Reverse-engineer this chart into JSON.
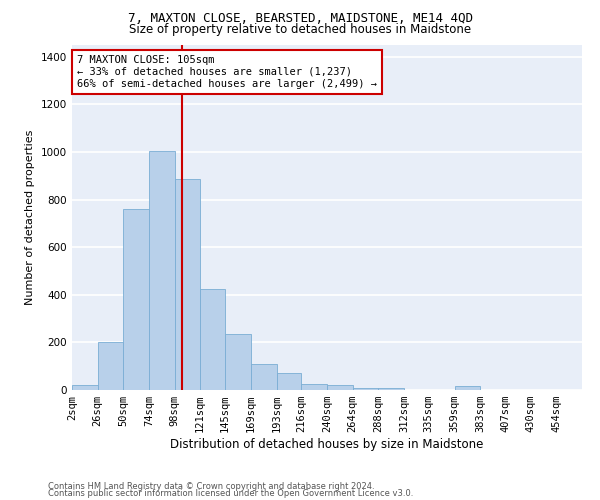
{
  "title": "7, MAXTON CLOSE, BEARSTED, MAIDSTONE, ME14 4QD",
  "subtitle": "Size of property relative to detached houses in Maidstone",
  "xlabel": "Distribution of detached houses by size in Maidstone",
  "ylabel": "Number of detached properties",
  "bar_color": "#b8d0ea",
  "bar_edge_color": "#7aadd4",
  "background_color": "#e8eef8",
  "grid_color": "#ffffff",
  "vline_x": 105,
  "vline_color": "#cc0000",
  "annotation_line1": "7 MAXTON CLOSE: 105sqm",
  "annotation_line2": "← 33% of detached houses are smaller (1,237)",
  "annotation_line3": "66% of semi-detached houses are larger (2,499) →",
  "annotation_box_color": "#cc0000",
  "footer1": "Contains HM Land Registry data © Crown copyright and database right 2024.",
  "footer2": "Contains public sector information licensed under the Open Government Licence v3.0.",
  "bin_edges": [
    2,
    26,
    50,
    74,
    98,
    121,
    145,
    169,
    193,
    216,
    240,
    264,
    288,
    312,
    335,
    359,
    383,
    407,
    430,
    454,
    478
  ],
  "bin_counts": [
    20,
    200,
    760,
    1005,
    885,
    425,
    235,
    108,
    70,
    25,
    20,
    10,
    8,
    0,
    0,
    15,
    0,
    0,
    0,
    0
  ],
  "ylim": [
    0,
    1450
  ],
  "xlim": [
    2,
    478
  ],
  "title_fontsize": 9,
  "subtitle_fontsize": 8.5,
  "ylabel_fontsize": 8,
  "xlabel_fontsize": 8.5,
  "tick_fontsize": 7.5
}
